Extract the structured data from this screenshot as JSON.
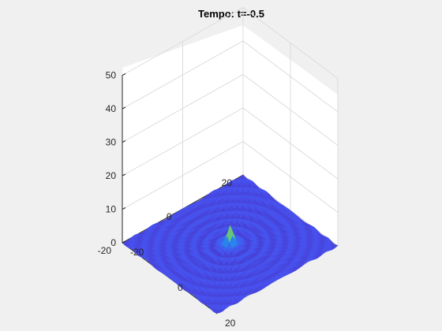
{
  "chart_data": {
    "type": "surface",
    "title": "Tempo: t=-0.5",
    "xlabel": "",
    "ylabel": "",
    "zlabel": "",
    "xlim": [
      -20,
      20
    ],
    "ylim": [
      -20,
      20
    ],
    "zlim": [
      0,
      50
    ],
    "x_ticks": [
      "-20",
      "0",
      "20"
    ],
    "y_ticks": [
      "20",
      "0",
      "-20"
    ],
    "z_ticks": [
      "0",
      "10",
      "20",
      "30",
      "40",
      "50"
    ],
    "grid": true,
    "colormap": "parula",
    "surface": {
      "description": "radially symmetric damped ripple centered at origin",
      "peak_height": 5,
      "ripple_amplitude": 0.6,
      "ripple_wavelength": 3.2
    }
  }
}
